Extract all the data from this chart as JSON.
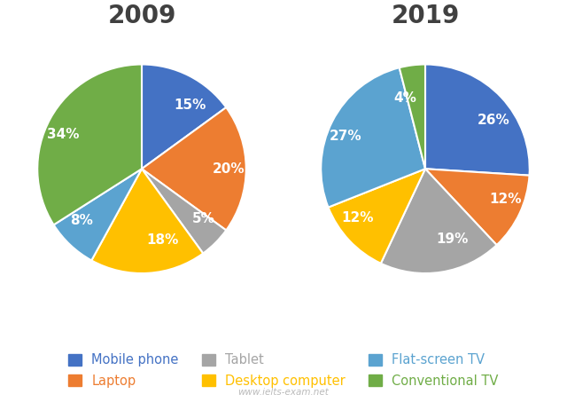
{
  "year1": "2009",
  "year2": "2019",
  "categories": [
    "Mobile phone",
    "Laptop",
    "Tablet",
    "Desktop computer",
    "Flat-screen TV",
    "Conventional TV"
  ],
  "colors": [
    "#4472C4",
    "#ED7D31",
    "#A5A5A5",
    "#FFC000",
    "#5BA3D0",
    "#70AD47"
  ],
  "legend_text_colors": [
    "#4472C4",
    "#ED7D31",
    "#A5A5A5",
    "#FFC000",
    "#5BA3D0",
    "#70AD47"
  ],
  "values_2009": [
    15,
    20,
    5,
    18,
    8,
    34
  ],
  "values_2019": [
    26,
    12,
    19,
    12,
    27,
    4
  ],
  "labels_2009": [
    "15%",
    "20%",
    "5%",
    "18%",
    "8%",
    "34%"
  ],
  "labels_2019": [
    "26%",
    "12%",
    "19%",
    "12%",
    "27%",
    "4%"
  ],
  "startangle_2009": 90,
  "startangle_2019": 90,
  "title_fontsize": 20,
  "title_color": "#404040",
  "label_fontsize": 11,
  "legend_fontsize": 10.5,
  "watermark": "www.ielts-exam.net",
  "background_color": "#FFFFFF"
}
